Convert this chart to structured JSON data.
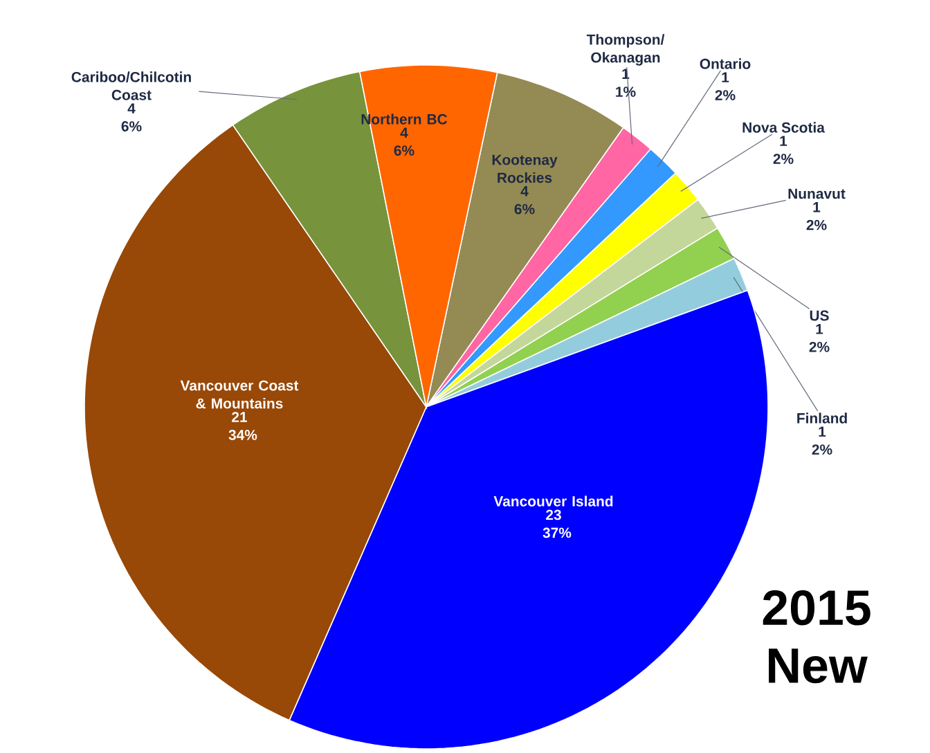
{
  "chart_data": {
    "type": "pie",
    "title": "2015 New",
    "categories": [
      "Kootenay Rockies",
      "Thompson/ Okanagan",
      "Ontario",
      "Nova Scotia",
      "Nunavut",
      "US",
      "Finland",
      "Vancouver Island",
      "Vancouver Coast & Mountains",
      "Cariboo/Chilcotin Coast",
      "Northern BC"
    ],
    "values": [
      4,
      1,
      1,
      1,
      1,
      1,
      1,
      23,
      21,
      4,
      4
    ],
    "colors": [
      "#948A54",
      "#FF66A3",
      "#3399FF",
      "#FFFF00",
      "#C4D79B",
      "#92D050",
      "#93CDDD",
      "#0000FF",
      "#984807",
      "#77933C",
      "#FF6600"
    ],
    "value_labels": [
      "4 6%",
      "1 1%",
      "1 2%",
      "1 2%",
      "1 2%",
      "1 2%",
      "1 2%",
      "23 37%",
      "21 34%",
      "4 6%",
      "4 6%"
    ]
  }
}
